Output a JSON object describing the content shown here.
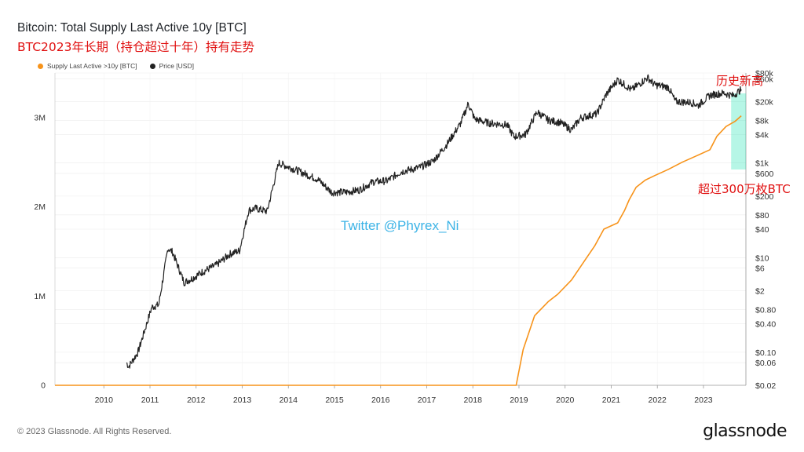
{
  "header": {
    "title": "Bitcoin: Total Supply Last Active 10y [BTC]",
    "subtitle": "BTC2023年长期（持仓超过十年）持有走势"
  },
  "legend": [
    {
      "label": "Supply Last Active >10y [BTC]",
      "color": "#f7931a"
    },
    {
      "label": "Price [USD]",
      "color": "#222222"
    }
  ],
  "annotations": {
    "watermark": "Twitter @Phyrex_Ni",
    "all_time_high": "历史新高",
    "over_3m": "超过300万枚BTC"
  },
  "footer": {
    "copyright": "© 2023 Glassnode. All Rights Reserved.",
    "logo": "glassnode"
  },
  "colors": {
    "supply": "#f7931a",
    "price": "#222222",
    "highlight": "#2ee6b8",
    "grid": "#ececec"
  },
  "chart_data": {
    "type": "line",
    "x_ticks": [
      "2010",
      "2011",
      "2012",
      "2013",
      "2014",
      "2015",
      "2016",
      "2017",
      "2018",
      "2019",
      "2020",
      "2021",
      "2022",
      "2023"
    ],
    "y_left_ticks": [
      {
        "value": 0,
        "label": "0"
      },
      {
        "value": 1000000,
        "label": "1M"
      },
      {
        "value": 2000000,
        "label": "2M"
      },
      {
        "value": 3000000,
        "label": "3M"
      }
    ],
    "y_right_ticks": [
      {
        "value": 0.02,
        "label": "$0.02"
      },
      {
        "value": 0.06,
        "label": "$0.06"
      },
      {
        "value": 0.1,
        "label": "$0.10"
      },
      {
        "value": 0.4,
        "label": "$0.40"
      },
      {
        "value": 0.8,
        "label": "$0.80"
      },
      {
        "value": 2,
        "label": "$2"
      },
      {
        "value": 6,
        "label": "$6"
      },
      {
        "value": 10,
        "label": "$10"
      },
      {
        "value": 40,
        "label": "$40"
      },
      {
        "value": 80,
        "label": "$80"
      },
      {
        "value": 200,
        "label": "$200"
      },
      {
        "value": 600,
        "label": "$600"
      },
      {
        "value": 1000,
        "label": "$1k"
      },
      {
        "value": 4000,
        "label": "$4k"
      },
      {
        "value": 8000,
        "label": "$8k"
      },
      {
        "value": 20000,
        "label": "$20k"
      },
      {
        "value": 60000,
        "label": "$60k"
      },
      {
        "value": 80000,
        "label": "$80k"
      }
    ],
    "series": [
      {
        "name": "Supply Last Active >10y [BTC]",
        "axis": "left",
        "points": [
          [
            "2009.0",
            0
          ],
          [
            "2018.0",
            0
          ],
          [
            "2019.0",
            0
          ],
          [
            "2019.15",
            400000
          ],
          [
            "2019.4",
            780000
          ],
          [
            "2019.7",
            940000
          ],
          [
            "2019.9",
            1020000
          ],
          [
            "2020.2",
            1180000
          ],
          [
            "2020.5",
            1410000
          ],
          [
            "2020.7",
            1560000
          ],
          [
            "2020.9",
            1750000
          ],
          [
            "2021.2",
            1820000
          ],
          [
            "2021.35",
            1960000
          ],
          [
            "2021.45",
            2080000
          ],
          [
            "2021.6",
            2220000
          ],
          [
            "2021.8",
            2300000
          ],
          [
            "2022.0",
            2350000
          ],
          [
            "2022.3",
            2420000
          ],
          [
            "2022.6",
            2500000
          ],
          [
            "2022.9",
            2570000
          ],
          [
            "2023.2",
            2640000
          ],
          [
            "2023.35",
            2790000
          ],
          [
            "2023.55",
            2900000
          ],
          [
            "2023.75",
            2960000
          ],
          [
            "2023.88",
            3020000
          ]
        ]
      },
      {
        "name": "Price [USD]",
        "axis": "right",
        "points": [
          [
            "2010.55",
            0.06
          ],
          [
            "2010.6",
            0.05
          ],
          [
            "2010.8",
            0.1
          ],
          [
            "2010.95",
            0.3
          ],
          [
            "2011.1",
            0.9
          ],
          [
            "2011.25",
            1.0
          ],
          [
            "2011.45",
            16
          ],
          [
            "2011.55",
            13
          ],
          [
            "2011.8",
            3
          ],
          [
            "2011.95",
            3.5
          ],
          [
            "2012.2",
            5
          ],
          [
            "2012.5",
            7
          ],
          [
            "2012.8",
            12
          ],
          [
            "2013.0",
            14
          ],
          [
            "2013.2",
            100
          ],
          [
            "2013.35",
            110
          ],
          [
            "2013.6",
            95
          ],
          [
            "2013.85",
            1000
          ],
          [
            "2014.1",
            800
          ],
          [
            "2014.4",
            600
          ],
          [
            "2014.7",
            450
          ],
          [
            "2015.0",
            240
          ],
          [
            "2015.3",
            240
          ],
          [
            "2015.6",
            270
          ],
          [
            "2015.9",
            400
          ],
          [
            "2016.2",
            420
          ],
          [
            "2016.5",
            650
          ],
          [
            "2016.9",
            800
          ],
          [
            "2017.2",
            1100
          ],
          [
            "2017.5",
            2500
          ],
          [
            "2017.8",
            7000
          ],
          [
            "2017.96",
            18000
          ],
          [
            "2018.1",
            8500
          ],
          [
            "2018.4",
            7000
          ],
          [
            "2018.8",
            6400
          ],
          [
            "2018.95",
            3600
          ],
          [
            "2019.2",
            4000
          ],
          [
            "2019.45",
            12000
          ],
          [
            "2019.7",
            8000
          ],
          [
            "2019.95",
            7200
          ],
          [
            "2020.2",
            5000
          ],
          [
            "2020.4",
            9000
          ],
          [
            "2020.75",
            11000
          ],
          [
            "2020.95",
            28000
          ],
          [
            "2021.2",
            58000
          ],
          [
            "2021.5",
            35000
          ],
          [
            "2021.85",
            64000
          ],
          [
            "2022.0",
            45000
          ],
          [
            "2022.3",
            40000
          ],
          [
            "2022.45",
            20000
          ],
          [
            "2022.8",
            19000
          ],
          [
            "2022.95",
            16500
          ],
          [
            "2023.2",
            27000
          ],
          [
            "2023.5",
            30000
          ],
          [
            "2023.7",
            26500
          ],
          [
            "2023.88",
            36000
          ]
        ]
      }
    ],
    "ylim_left": [
      0,
      3500000
    ],
    "ylim_right": [
      0.02,
      80000
    ],
    "log_scale_right": true,
    "grid": true,
    "legend_position": "top-left"
  }
}
